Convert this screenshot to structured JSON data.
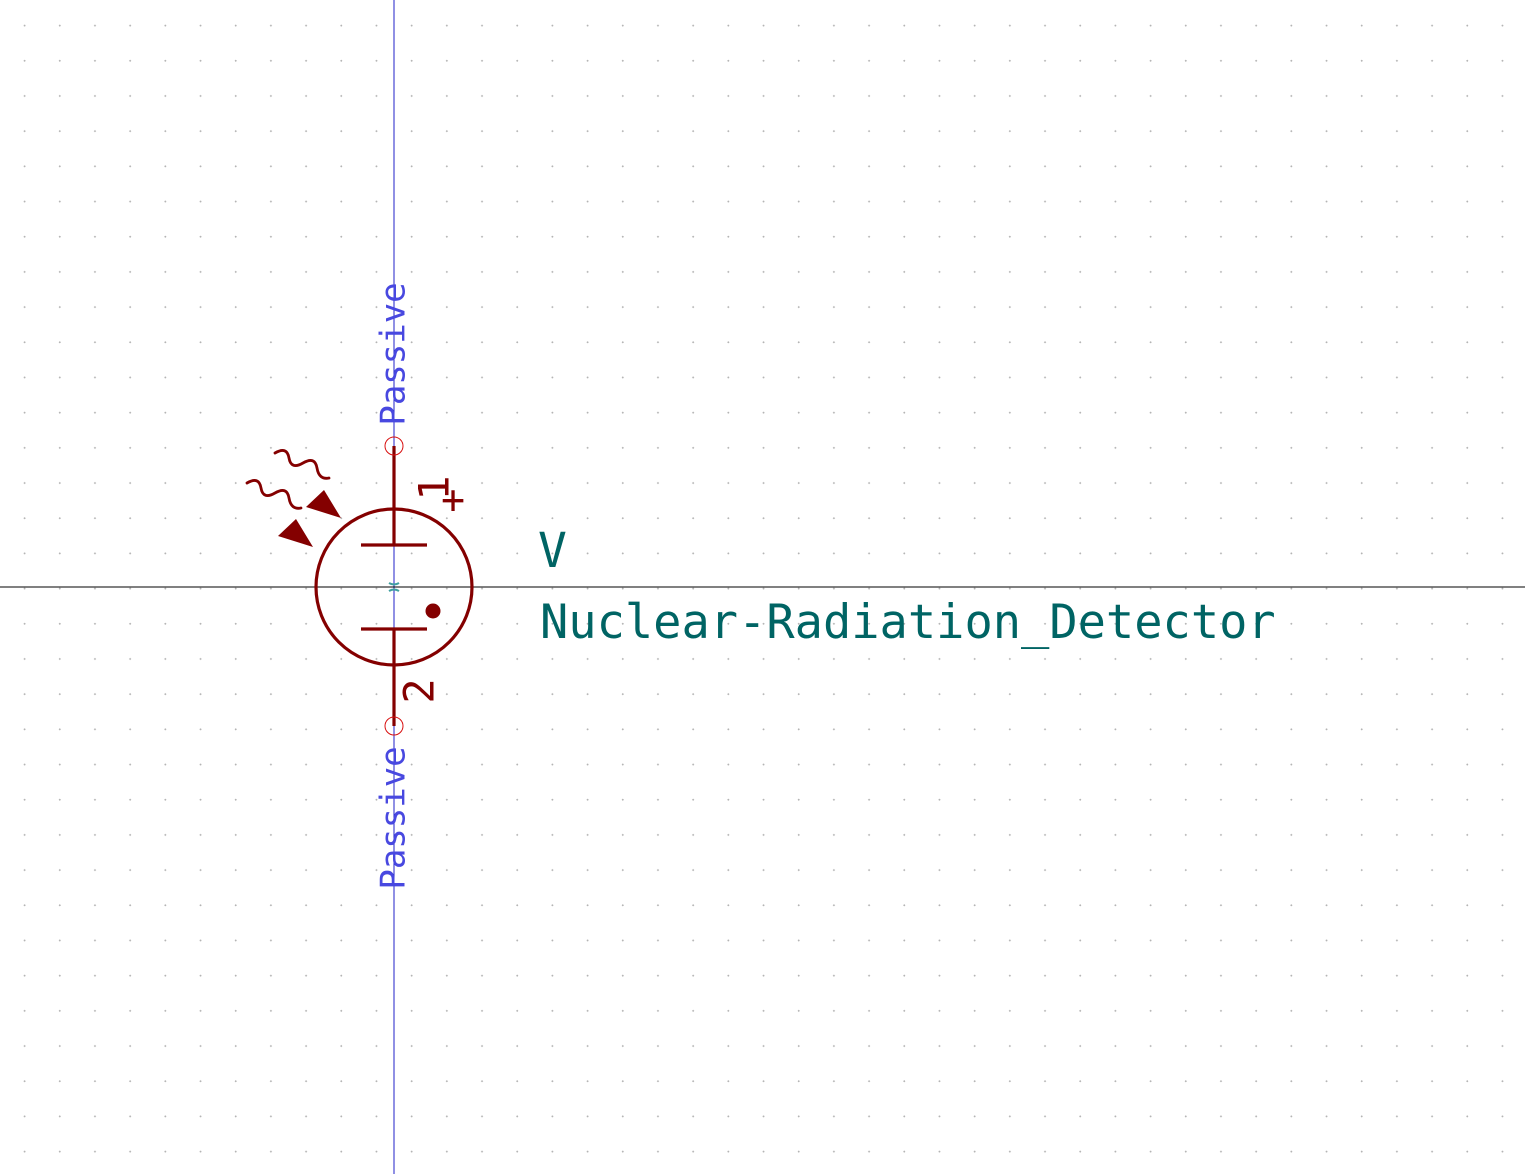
{
  "symbol": {
    "reference": "V",
    "value": "Nuclear-Radiation_Detector",
    "polarity_mark": "+",
    "pins": [
      {
        "number": "1",
        "electrical_type": "Passive"
      },
      {
        "number": "2",
        "electrical_type": "Passive"
      }
    ]
  },
  "colors": {
    "body": "#840000",
    "pin_type_text": "#4848e0",
    "field_text": "#006464",
    "anchor": "#d81010",
    "axis_vertical": "#2020c8",
    "axis_horizontal": "#000000",
    "grid_dot": "#b4b4b4"
  },
  "icons": [
    "radiation-wave-arrow-icon",
    "pin-connection-circle-icon",
    "symbol-anchor-icon"
  ]
}
